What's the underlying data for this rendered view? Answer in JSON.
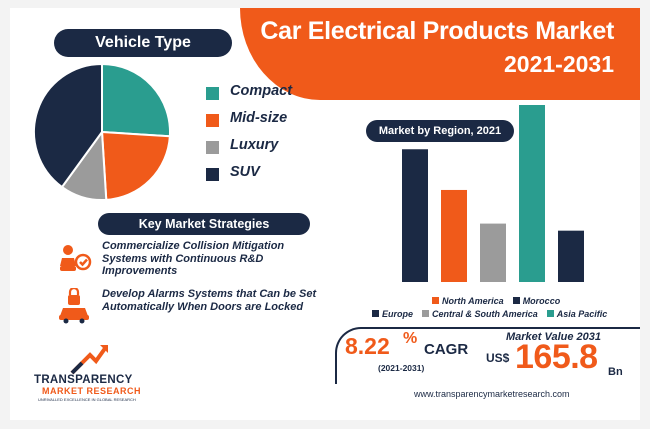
{
  "header": {
    "title": "Car Electrical Products Market",
    "years": "2021-2031"
  },
  "colors": {
    "orange": "#f05a1a",
    "navy": "#1b2944",
    "teal": "#2a9d8f",
    "grey": "#9b9b9b",
    "page_bg": "#ffffff"
  },
  "vehicle_section": {
    "heading": "Vehicle Type"
  },
  "region_section": {
    "heading": "Market by Region, 2021"
  },
  "strategies": {
    "heading": "Key Market Strategies",
    "items": [
      {
        "icon": "collision-safety-icon",
        "text": "Commercialize Collision Mitigation Systems with Continuous R&D Improvements"
      },
      {
        "icon": "car-lock-icon",
        "text": "Develop Alarms Systems that Can be Set Automatically When Doors are Locked"
      }
    ]
  },
  "market_value": {
    "cagr_value": "8.22",
    "cagr_percent": "%",
    "cagr_label": "CAGR",
    "cagr_years": "(2021-2031)",
    "label": "Market Value 2031",
    "currency": "US$",
    "value": "165.8",
    "unit": "Bn"
  },
  "website": "www.transparencymarketresearch.com",
  "logo": {
    "line1": "TRANSPARENCY",
    "line2": "MARKET RESEARCH",
    "tagline": "UNRIVALLED EXCELLENCE IN GLOBAL RESEARCH"
  },
  "chart_data": [
    {
      "type": "pie",
      "title": "Vehicle Type",
      "legend_position": "right",
      "labels": [
        "Compact",
        "Mid-size",
        "Luxury",
        "SUV"
      ],
      "values": [
        26,
        23,
        11,
        40
      ],
      "colors": [
        "#2a9d8f",
        "#f05a1a",
        "#9b9b9b",
        "#1b2944"
      ]
    },
    {
      "type": "bar",
      "title": "Market by Region, 2021",
      "legend_position": "bottom",
      "grid": false,
      "categories": [
        "Europe",
        "North America",
        "Central & South America",
        "Asia Pacific",
        "Morocco"
      ],
      "values": [
        75,
        52,
        33,
        100,
        29
      ],
      "colors": [
        "#1b2944",
        "#f05a1a",
        "#9b9b9b",
        "#2a9d8f",
        "#1b2944"
      ],
      "ylim": [
        0,
        100
      ]
    }
  ]
}
